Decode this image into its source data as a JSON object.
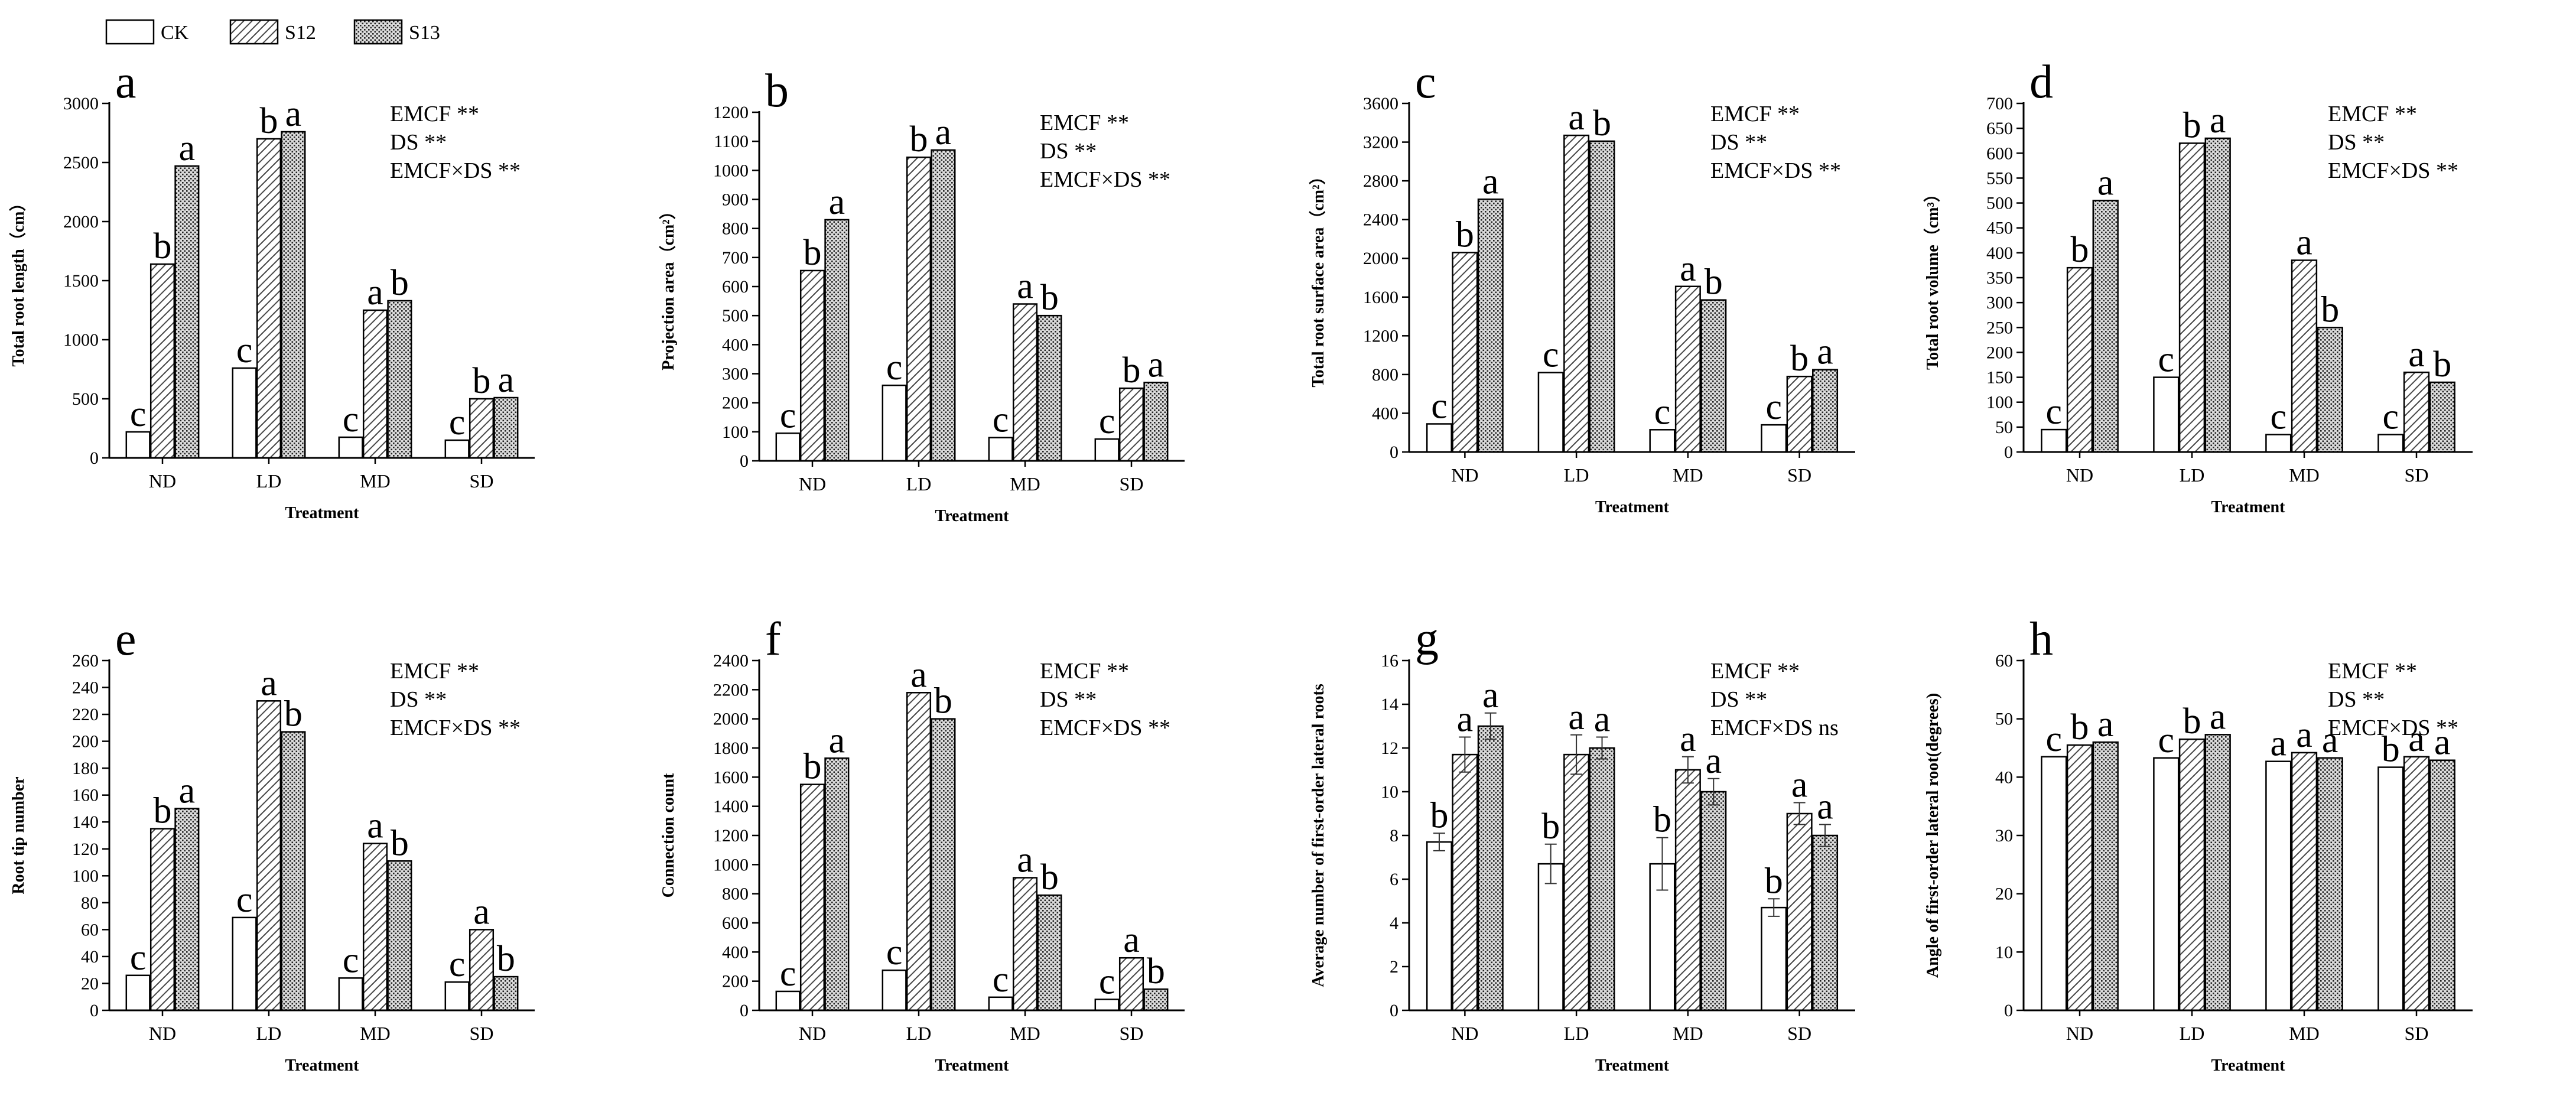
{
  "legend": [
    {
      "key": "CK",
      "label": "CK"
    },
    {
      "key": "S12",
      "label": "S12"
    },
    {
      "key": "S13",
      "label": "S13"
    }
  ],
  "chart_data": [
    {
      "type": "bar",
      "panel": "a",
      "ylabel": "Total root length（cm）",
      "xlabel": "Treatment",
      "categories": [
        "ND",
        "LD",
        "MD",
        "SD"
      ],
      "ylim": [
        0,
        3000
      ],
      "yticks": [
        0,
        500,
        1000,
        1500,
        2000,
        2500,
        3000
      ],
      "series": [
        {
          "name": "CK",
          "values": [
            220,
            760,
            175,
            150
          ],
          "letters": [
            "c",
            "c",
            "c",
            "c"
          ]
        },
        {
          "name": "S12",
          "values": [
            1640,
            2700,
            1250,
            500
          ],
          "letters": [
            "b",
            "b",
            "a",
            "b"
          ]
        },
        {
          "name": "S13",
          "values": [
            2470,
            2760,
            1330,
            510
          ],
          "letters": [
            "a",
            "a",
            "b",
            "a"
          ]
        }
      ],
      "annotations": [
        "EMCF **",
        "DS **",
        "EMCF×DS **"
      ]
    },
    {
      "type": "bar",
      "panel": "b",
      "ylabel": "Projection area（cm²）",
      "xlabel": "Treatment",
      "categories": [
        "ND",
        "LD",
        "MD",
        "SD"
      ],
      "ylim": [
        0,
        1200
      ],
      "yticks": [
        0,
        100,
        200,
        300,
        400,
        500,
        600,
        700,
        800,
        900,
        1000,
        1100,
        1200
      ],
      "series": [
        {
          "name": "CK",
          "values": [
            95,
            260,
            80,
            75
          ],
          "letters": [
            "c",
            "c",
            "c",
            "c"
          ]
        },
        {
          "name": "S12",
          "values": [
            655,
            1045,
            540,
            250
          ],
          "letters": [
            "b",
            "b",
            "a",
            "b"
          ]
        },
        {
          "name": "S13",
          "values": [
            830,
            1070,
            500,
            270
          ],
          "letters": [
            "a",
            "a",
            "b",
            "a"
          ]
        }
      ],
      "annotations": [
        "EMCF **",
        "DS **",
        "EMCF×DS **"
      ]
    },
    {
      "type": "bar",
      "panel": "c",
      "ylabel": "Total root surface area（cm²）",
      "xlabel": "Treatment",
      "categories": [
        "ND",
        "LD",
        "MD",
        "SD"
      ],
      "ylim": [
        0,
        3600
      ],
      "yticks": [
        0,
        400,
        800,
        1200,
        1600,
        2000,
        2400,
        2800,
        3200,
        3600
      ],
      "series": [
        {
          "name": "CK",
          "values": [
            290,
            820,
            230,
            280
          ],
          "letters": [
            "c",
            "c",
            "c",
            "c"
          ]
        },
        {
          "name": "S12",
          "values": [
            2060,
            3270,
            1710,
            780
          ],
          "letters": [
            "b",
            "a",
            "a",
            "b"
          ]
        },
        {
          "name": "S13",
          "values": [
            2610,
            3210,
            1570,
            850
          ],
          "letters": [
            "a",
            "b",
            "b",
            "a"
          ]
        }
      ],
      "annotations": [
        "EMCF **",
        "DS **",
        "EMCF×DS **"
      ]
    },
    {
      "type": "bar",
      "panel": "d",
      "ylabel": "Total root volume（cm³）",
      "xlabel": "Treatment",
      "categories": [
        "ND",
        "LD",
        "MD",
        "SD"
      ],
      "ylim": [
        0,
        700
      ],
      "yticks": [
        0,
        50,
        100,
        150,
        200,
        250,
        300,
        350,
        400,
        450,
        500,
        550,
        600,
        650,
        700
      ],
      "series": [
        {
          "name": "CK",
          "values": [
            45,
            150,
            35,
            35
          ],
          "letters": [
            "c",
            "c",
            "c",
            "c"
          ]
        },
        {
          "name": "S12",
          "values": [
            370,
            620,
            385,
            160
          ],
          "letters": [
            "b",
            "b",
            "a",
            "a"
          ]
        },
        {
          "name": "S13",
          "values": [
            505,
            630,
            250,
            140
          ],
          "letters": [
            "a",
            "a",
            "b",
            "b"
          ]
        }
      ],
      "annotations": [
        "EMCF **",
        "DS **",
        "EMCF×DS **"
      ]
    },
    {
      "type": "bar",
      "panel": "e",
      "ylabel": "Root tip number",
      "xlabel": "Treatment",
      "categories": [
        "ND",
        "LD",
        "MD",
        "SD"
      ],
      "ylim": [
        0,
        260
      ],
      "yticks": [
        0,
        20,
        40,
        60,
        80,
        100,
        120,
        140,
        160,
        180,
        200,
        220,
        240,
        260
      ],
      "series": [
        {
          "name": "CK",
          "values": [
            26,
            69,
            24,
            21
          ],
          "letters": [
            "c",
            "c",
            "c",
            "c"
          ]
        },
        {
          "name": "S12",
          "values": [
            135,
            230,
            124,
            60
          ],
          "letters": [
            "b",
            "a",
            "a",
            "a"
          ]
        },
        {
          "name": "S13",
          "values": [
            150,
            207,
            111,
            25
          ],
          "letters": [
            "a",
            "b",
            "b",
            "b"
          ]
        }
      ],
      "annotations": [
        "EMCF **",
        "DS **",
        "EMCF×DS **"
      ]
    },
    {
      "type": "bar",
      "panel": "f",
      "ylabel": "Connection count",
      "xlabel": "Treatment",
      "categories": [
        "ND",
        "LD",
        "MD",
        "SD"
      ],
      "ylim": [
        0,
        2400
      ],
      "yticks": [
        0,
        200,
        400,
        600,
        800,
        1000,
        1200,
        1400,
        1600,
        1800,
        2000,
        2200,
        2400
      ],
      "series": [
        {
          "name": "CK",
          "values": [
            130,
            275,
            90,
            75
          ],
          "letters": [
            "c",
            "c",
            "c",
            "c"
          ]
        },
        {
          "name": "S12",
          "values": [
            1550,
            2180,
            910,
            360
          ],
          "letters": [
            "b",
            "a",
            "a",
            "a"
          ]
        },
        {
          "name": "S13",
          "values": [
            1730,
            2000,
            790,
            145
          ],
          "letters": [
            "a",
            "b",
            "b",
            "b"
          ]
        }
      ],
      "annotations": [
        "EMCF **",
        "DS **",
        "EMCF×DS **"
      ]
    },
    {
      "type": "bar",
      "panel": "g",
      "ylabel": "Average number of first-order lateral roots",
      "xlabel": "Treatment",
      "categories": [
        "ND",
        "LD",
        "MD",
        "SD"
      ],
      "ylim": [
        0,
        16
      ],
      "yticks": [
        0,
        2,
        4,
        6,
        8,
        10,
        12,
        14,
        16
      ],
      "series": [
        {
          "name": "CK",
          "values": [
            7.7,
            6.7,
            6.7,
            4.7
          ],
          "letters": [
            "b",
            "b",
            "b",
            "b"
          ]
        },
        {
          "name": "S12",
          "values": [
            11.7,
            11.7,
            11.0,
            9.0
          ],
          "letters": [
            "a",
            "a",
            "a",
            "a"
          ]
        },
        {
          "name": "S13",
          "values": [
            13.0,
            12.0,
            10.0,
            8.0
          ],
          "letters": [
            "a",
            "a",
            "a",
            "a"
          ]
        }
      ],
      "errors": [
        [
          0.4,
          0.9,
          1.2,
          0.4
        ],
        [
          0.8,
          0.9,
          0.6,
          0.5
        ],
        [
          0.6,
          0.5,
          0.6,
          0.5
        ]
      ],
      "annotations": [
        "EMCF **",
        "DS **",
        "EMCF×DS ns"
      ]
    },
    {
      "type": "bar",
      "panel": "h",
      "ylabel": "Angle of first-order lateral root(degrees)",
      "xlabel": "Treatment",
      "categories": [
        "ND",
        "LD",
        "MD",
        "SD"
      ],
      "ylim": [
        0,
        60
      ],
      "yticks": [
        0,
        10,
        20,
        30,
        40,
        50,
        60
      ],
      "series": [
        {
          "name": "CK",
          "values": [
            43.5,
            43.3,
            42.7,
            41.7
          ],
          "letters": [
            "c",
            "c",
            "a",
            "b"
          ]
        },
        {
          "name": "S12",
          "values": [
            45.5,
            46.5,
            44.2,
            43.5
          ],
          "letters": [
            "b",
            "b",
            "a",
            "a"
          ]
        },
        {
          "name": "S13",
          "values": [
            46.0,
            47.3,
            43.3,
            42.9
          ],
          "letters": [
            "a",
            "a",
            "a",
            "a"
          ]
        }
      ],
      "annotations": [
        "EMCF **",
        "DS **",
        "EMCF×DS **"
      ]
    }
  ]
}
